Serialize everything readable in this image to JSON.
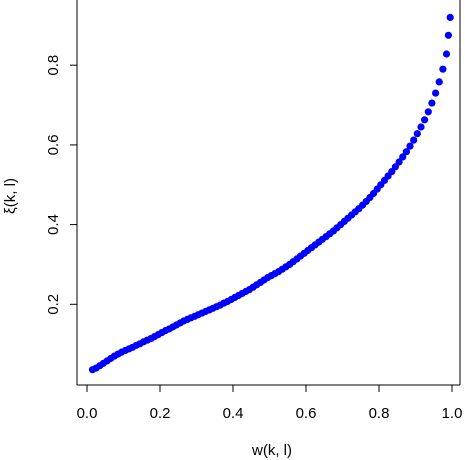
{
  "chart_data": {
    "type": "scatter",
    "title": "",
    "xlabel": "w(k, l)",
    "ylabel": "ξ(k, l)",
    "xlim": [
      -0.02,
      1.04
    ],
    "ylim": [
      0.0,
      0.95
    ],
    "x_ticks": [
      0.0,
      0.2,
      0.4,
      0.6,
      0.8,
      1.0
    ],
    "x_tick_labels": [
      "0.0",
      "0.2",
      "0.4",
      "0.6",
      "0.8",
      "1.0"
    ],
    "y_ticks": [
      0.2,
      0.4,
      0.6,
      0.8
    ],
    "y_tick_labels": [
      "0.2",
      "0.4",
      "0.6",
      "0.8"
    ],
    "grid": false,
    "legend": "none",
    "point_color": "#0000ff",
    "series": [
      {
        "points": [
          [
            0.015,
            0.036
          ],
          [
            0.025,
            0.04
          ],
          [
            0.035,
            0.046
          ],
          [
            0.045,
            0.052
          ],
          [
            0.055,
            0.058
          ],
          [
            0.065,
            0.064
          ],
          [
            0.075,
            0.07
          ],
          [
            0.085,
            0.075
          ],
          [
            0.095,
            0.08
          ],
          [
            0.105,
            0.084
          ],
          [
            0.115,
            0.088
          ],
          [
            0.125,
            0.092
          ],
          [
            0.135,
            0.097
          ],
          [
            0.145,
            0.101
          ],
          [
            0.155,
            0.106
          ],
          [
            0.165,
            0.11
          ],
          [
            0.175,
            0.114
          ],
          [
            0.185,
            0.119
          ],
          [
            0.195,
            0.124
          ],
          [
            0.205,
            0.129
          ],
          [
            0.215,
            0.134
          ],
          [
            0.225,
            0.138
          ],
          [
            0.235,
            0.143
          ],
          [
            0.245,
            0.148
          ],
          [
            0.255,
            0.153
          ],
          [
            0.265,
            0.158
          ],
          [
            0.275,
            0.162
          ],
          [
            0.285,
            0.166
          ],
          [
            0.295,
            0.17
          ],
          [
            0.305,
            0.174
          ],
          [
            0.315,
            0.178
          ],
          [
            0.325,
            0.182
          ],
          [
            0.335,
            0.186
          ],
          [
            0.345,
            0.19
          ],
          [
            0.355,
            0.194
          ],
          [
            0.365,
            0.198
          ],
          [
            0.375,
            0.203
          ],
          [
            0.385,
            0.207
          ],
          [
            0.395,
            0.212
          ],
          [
            0.405,
            0.217
          ],
          [
            0.415,
            0.222
          ],
          [
            0.425,
            0.227
          ],
          [
            0.435,
            0.232
          ],
          [
            0.445,
            0.237
          ],
          [
            0.455,
            0.243
          ],
          [
            0.465,
            0.249
          ],
          [
            0.475,
            0.255
          ],
          [
            0.485,
            0.261
          ],
          [
            0.495,
            0.267
          ],
          [
            0.505,
            0.272
          ],
          [
            0.515,
            0.277
          ],
          [
            0.525,
            0.282
          ],
          [
            0.535,
            0.288
          ],
          [
            0.545,
            0.294
          ],
          [
            0.555,
            0.3
          ],
          [
            0.565,
            0.307
          ],
          [
            0.575,
            0.314
          ],
          [
            0.585,
            0.321
          ],
          [
            0.595,
            0.328
          ],
          [
            0.605,
            0.335
          ],
          [
            0.615,
            0.342
          ],
          [
            0.625,
            0.349
          ],
          [
            0.635,
            0.356
          ],
          [
            0.645,
            0.363
          ],
          [
            0.655,
            0.37
          ],
          [
            0.665,
            0.377
          ],
          [
            0.675,
            0.384
          ],
          [
            0.685,
            0.392
          ],
          [
            0.695,
            0.4
          ],
          [
            0.705,
            0.408
          ],
          [
            0.715,
            0.416
          ],
          [
            0.725,
            0.424
          ],
          [
            0.735,
            0.432
          ],
          [
            0.745,
            0.44
          ],
          [
            0.755,
            0.449
          ],
          [
            0.765,
            0.458
          ],
          [
            0.775,
            0.468
          ],
          [
            0.785,
            0.478
          ],
          [
            0.795,
            0.489
          ],
          [
            0.805,
            0.5
          ],
          [
            0.815,
            0.511
          ],
          [
            0.825,
            0.522
          ],
          [
            0.835,
            0.533
          ],
          [
            0.845,
            0.545
          ],
          [
            0.855,
            0.557
          ],
          [
            0.865,
            0.57
          ],
          [
            0.875,
            0.583
          ],
          [
            0.885,
            0.597
          ],
          [
            0.895,
            0.612
          ],
          [
            0.905,
            0.628
          ],
          [
            0.915,
            0.645
          ],
          [
            0.925,
            0.663
          ],
          [
            0.935,
            0.683
          ],
          [
            0.945,
            0.705
          ],
          [
            0.955,
            0.73
          ],
          [
            0.965,
            0.758
          ],
          [
            0.975,
            0.79
          ],
          [
            0.985,
            0.828
          ],
          [
            0.99,
            0.875
          ],
          [
            0.995,
            0.92
          ]
        ]
      }
    ]
  }
}
